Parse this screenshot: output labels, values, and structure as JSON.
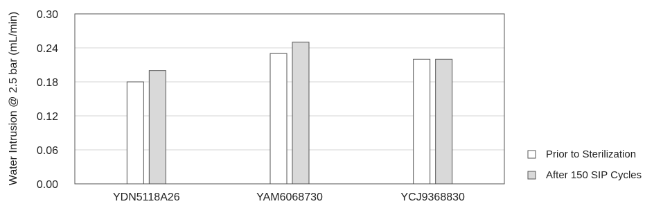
{
  "chart_data": {
    "type": "bar",
    "title": "",
    "xlabel": "",
    "ylabel": "Water Intrusion @ 2.5 bar (mL/min)",
    "categories": [
      "YDN5118A26",
      "YAM6068730",
      "YCJ9368830"
    ],
    "ylim": [
      0,
      0.3
    ],
    "yticks": [
      "0.00",
      "0.06",
      "0.12",
      "0.18",
      "0.24",
      "0.30"
    ],
    "grid": true,
    "legend_position": "right",
    "series": [
      {
        "name": "Prior to Sterilization",
        "values": [
          0.18,
          0.23,
          0.22
        ],
        "color": "#ffffff"
      },
      {
        "name": "After 150 SIP Cycles",
        "values": [
          0.2,
          0.25,
          0.22
        ],
        "color": "#d9d9d9"
      }
    ],
    "colors": {
      "bar_stroke": "#555555",
      "grid": "#d4d4d4",
      "axis": "#555555"
    }
  }
}
